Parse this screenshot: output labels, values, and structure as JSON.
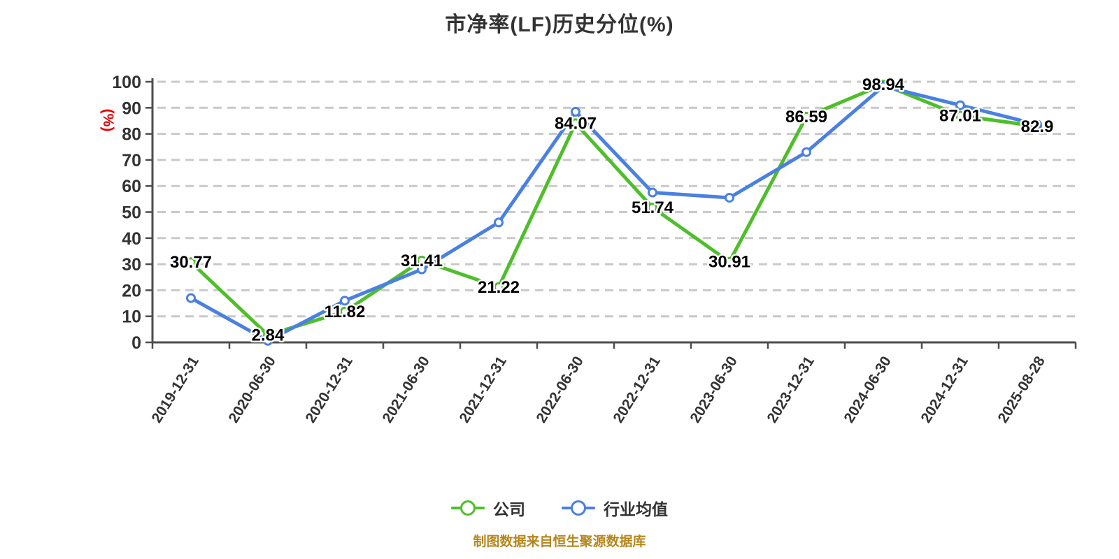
{
  "title": "市净率(LF)历史分位(%)",
  "y_axis_label": "(%)",
  "footer_note": "制图数据来自恒生聚源数据库",
  "colors": {
    "title_text": "#333333",
    "axis_text": "#333333",
    "axis_line": "#4d4d4d",
    "gridline": "#c9c9c9",
    "y_unit_red": "#e60000",
    "footer_gold": "#b5861c",
    "company_green": "#4fbe2b",
    "industry_blue": "#4a80e1",
    "marker_fill": "#ffffff",
    "data_label": "#000000"
  },
  "chart_data": {
    "type": "line",
    "title": "市净率(LF)历史分位(%)",
    "categories": [
      "2019-12-31",
      "2020-06-30",
      "2020-12-31",
      "2021-06-30",
      "2021-12-31",
      "2022-06-30",
      "2022-12-31",
      "2023-06-30",
      "2023-12-31",
      "2024-06-30",
      "2024-12-31",
      "2025-08-28"
    ],
    "series": [
      {
        "name": "公司",
        "color": "#4fbe2b",
        "values": [
          30.77,
          2.84,
          11.82,
          31.41,
          21.22,
          84.07,
          51.74,
          30.91,
          86.59,
          98.94,
          87.01,
          82.9
        ],
        "point_labels": [
          "30.77",
          "2.84",
          "11.82",
          "31.41",
          "21.22",
          "84.07",
          "51.74",
          "30.91",
          "86.59",
          "98.94",
          "87.01",
          "82.9"
        ],
        "show_point_labels": true,
        "marker": "circle-white-fill"
      },
      {
        "name": "行业均值",
        "color": "#4a80e1",
        "values": [
          17,
          0.6,
          16,
          28,
          46,
          88.5,
          57.5,
          55.5,
          73,
          98.3,
          91,
          83.6
        ],
        "show_point_labels": false,
        "marker": "circle-white-fill"
      }
    ],
    "ylabel": "(%)",
    "ylim": [
      0,
      100
    ],
    "yticks": [
      0,
      10,
      20,
      30,
      40,
      50,
      60,
      70,
      80,
      90,
      100
    ],
    "grid": "horizontal-dashed",
    "legend_position": "bottom",
    "x_label_rotation_deg": -58
  }
}
